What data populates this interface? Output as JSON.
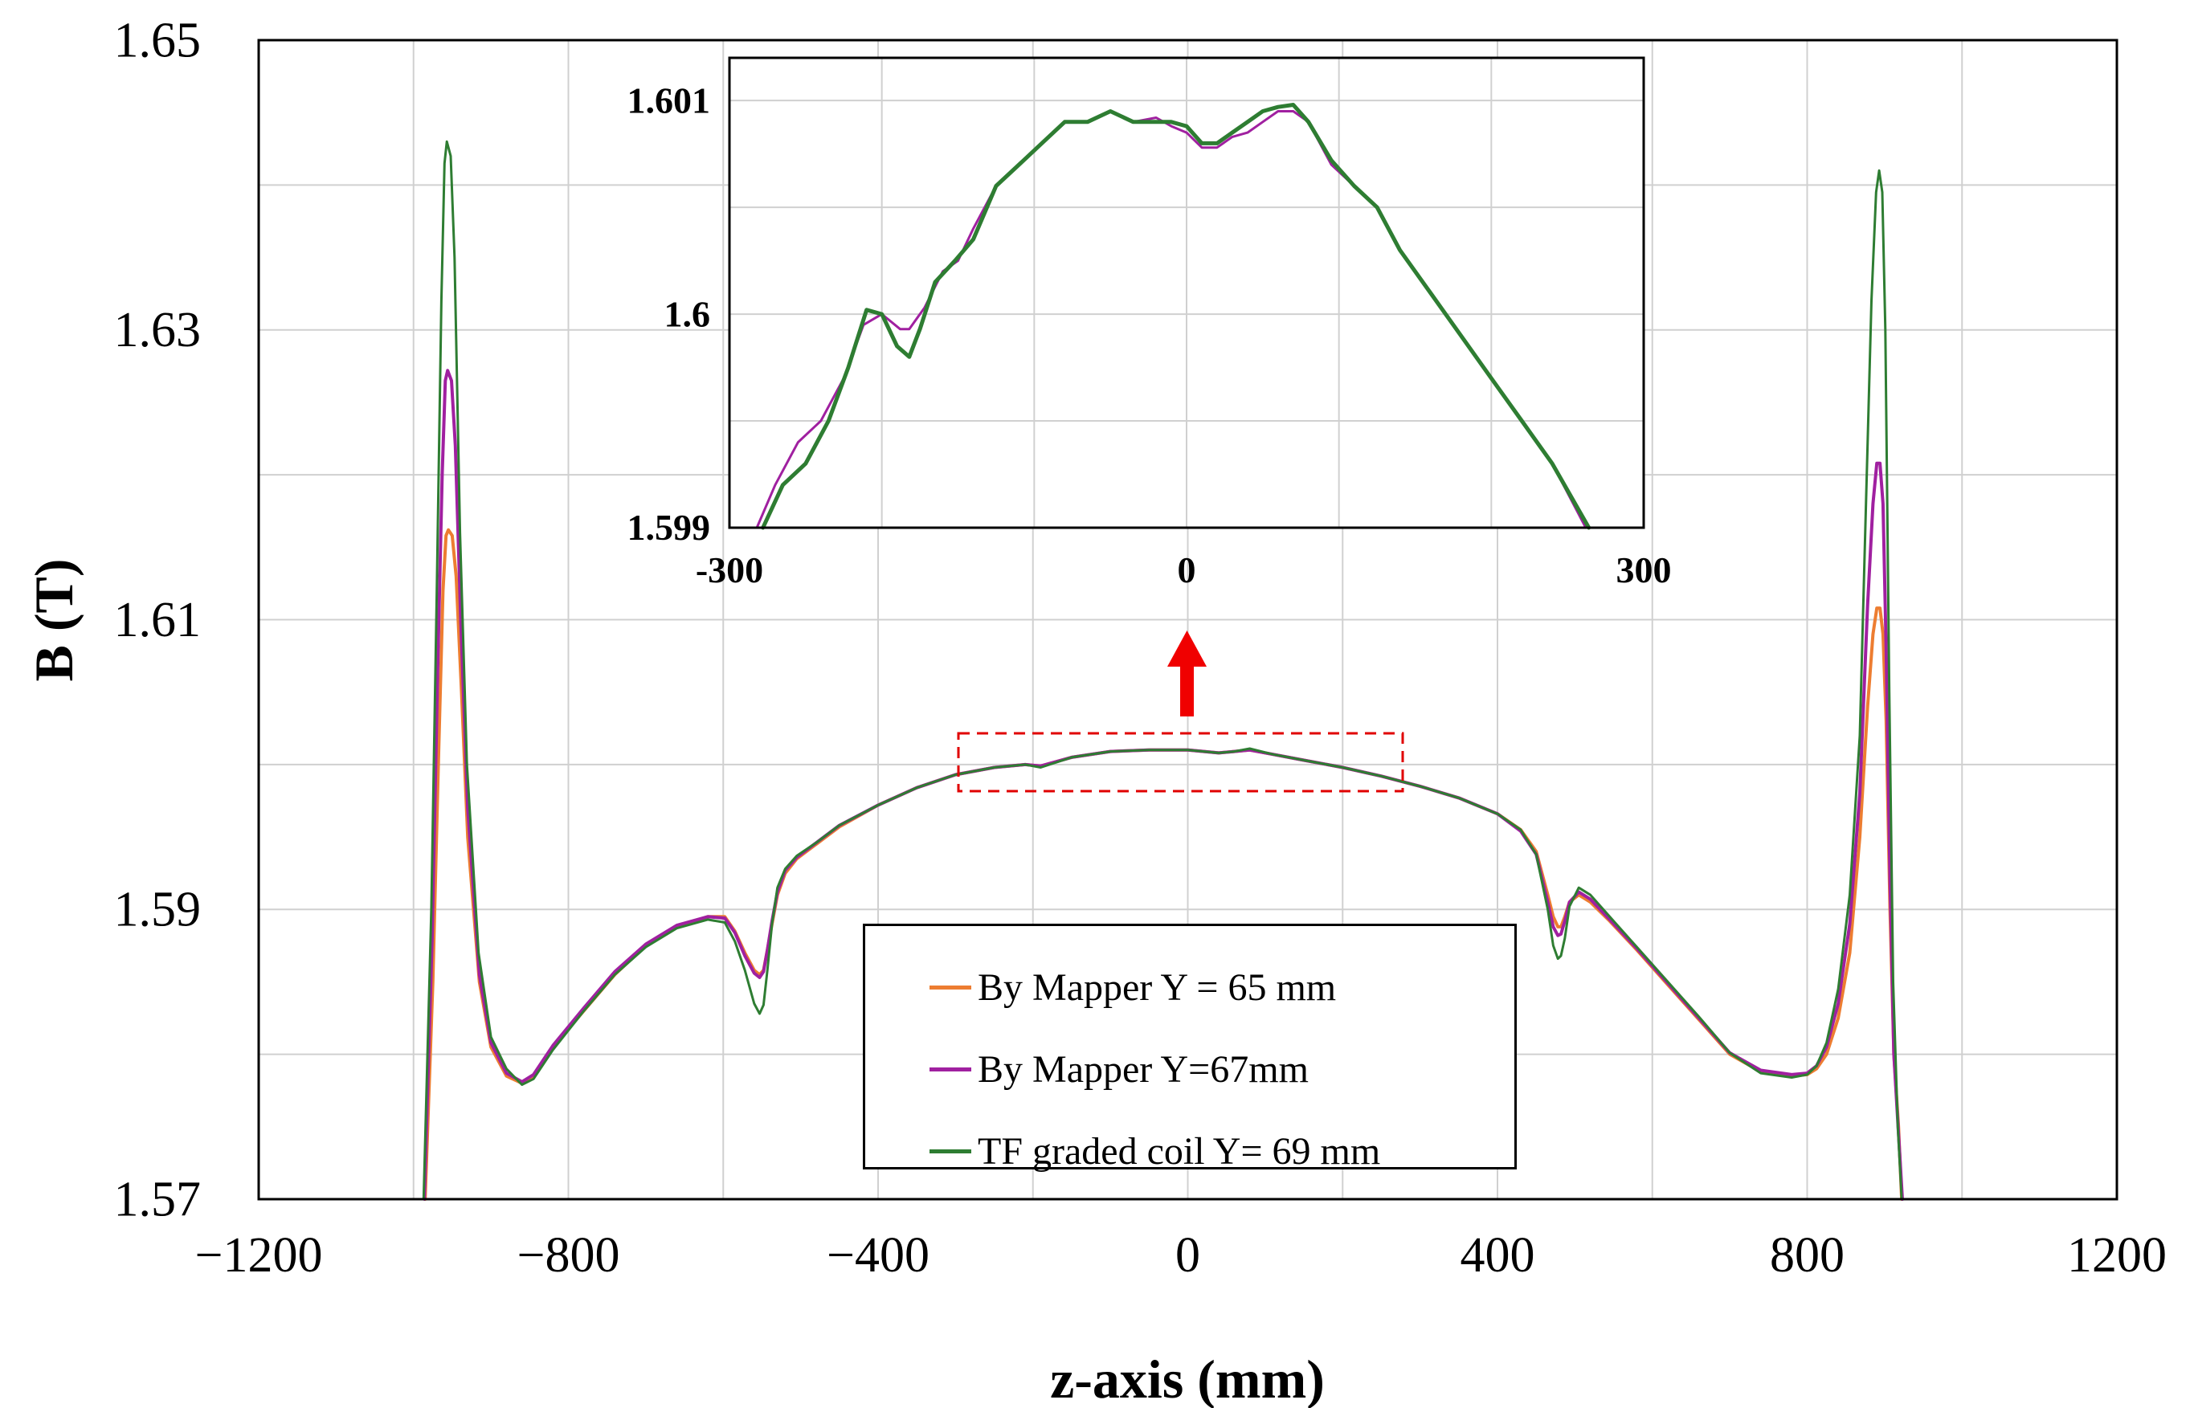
{
  "chart_data": [
    {
      "id": "main",
      "type": "line",
      "title": "",
      "xlabel": "z-axis (mm)",
      "ylabel": "B (T)",
      "xlim": [
        -1200,
        1200
      ],
      "ylim": [
        1.57,
        1.65
      ],
      "xticks": [
        -1200,
        -800,
        -400,
        0,
        400,
        800,
        1200
      ],
      "xtick_labels": [
        "−1200",
        "−800",
        "−400",
        "0",
        "400",
        "800",
        "1200"
      ],
      "yticks": [
        1.57,
        1.59,
        1.61,
        1.63,
        1.65
      ],
      "ytick_labels": [
        "1.57",
        "1.59",
        "1.61",
        "1.63",
        "1.65"
      ],
      "grid": true,
      "legend_position": "bottom-center",
      "series": [
        {
          "name": "By Mapper Y = 65 mm",
          "color": "#ED7D31",
          "x": [
            -985,
            -975,
            -968,
            -962,
            -958,
            -955,
            -950,
            -945,
            -938,
            -930,
            -915,
            -900,
            -880,
            -860,
            -845,
            -820,
            -780,
            -740,
            -700,
            -660,
            -620,
            -598,
            -585,
            -572,
            -560,
            -553,
            -548,
            -543,
            -537,
            -530,
            -520,
            -505,
            -480,
            -450,
            -400,
            -350,
            -300,
            -250,
            -210,
            -190,
            -150,
            -100,
            -50,
            0,
            40,
            60,
            80,
            110,
            150,
            200,
            250,
            300,
            350,
            400,
            430,
            450,
            465,
            472,
            478,
            482,
            487,
            493,
            505,
            520,
            545,
            580,
            620,
            660,
            700,
            740,
            780,
            800,
            812,
            825,
            840,
            855,
            868,
            878,
            885,
            890,
            894,
            898,
            902,
            907,
            912,
            918,
            922
          ],
          "y": [
            1.57,
            1.585,
            1.6,
            1.612,
            1.6158,
            1.6162,
            1.6158,
            1.613,
            1.605,
            1.595,
            1.585,
            1.5805,
            1.5785,
            1.578,
            1.5785,
            1.5805,
            1.583,
            1.5855,
            1.5875,
            1.5888,
            1.5895,
            1.5895,
            1.5885,
            1.587,
            1.5858,
            1.5855,
            1.5858,
            1.5872,
            1.589,
            1.591,
            1.5925,
            1.5935,
            1.5945,
            1.5957,
            1.5972,
            1.5984,
            1.5993,
            1.5998,
            1.6,
            1.5999,
            1.6005,
            1.6009,
            1.601,
            1.601,
            1.6008,
            1.6009,
            1.601,
            1.6007,
            1.6003,
            1.5998,
            1.5992,
            1.5985,
            1.5977,
            1.5966,
            1.5955,
            1.594,
            1.591,
            1.5895,
            1.5888,
            1.5888,
            1.5895,
            1.5905,
            1.591,
            1.5905,
            1.5892,
            1.5872,
            1.5848,
            1.5824,
            1.58,
            1.5788,
            1.5785,
            1.5786,
            1.579,
            1.58,
            1.5825,
            1.587,
            1.595,
            1.604,
            1.609,
            1.6108,
            1.6108,
            1.609,
            1.603,
            1.59,
            1.58,
            1.575,
            1.57
          ]
        },
        {
          "name": "By Mapper Y=67mm",
          "color": "#A020A0",
          "x": [
            -986,
            -976,
            -969,
            -963,
            -959,
            -956,
            -951,
            -946,
            -939,
            -930,
            -915,
            -900,
            -880,
            -860,
            -845,
            -820,
            -780,
            -740,
            -700,
            -660,
            -620,
            -598,
            -585,
            -572,
            -560,
            -553,
            -548,
            -543,
            -537,
            -530,
            -520,
            -505,
            -480,
            -450,
            -400,
            -350,
            -300,
            -250,
            -210,
            -190,
            -150,
            -100,
            -50,
            0,
            40,
            60,
            80,
            110,
            150,
            200,
            250,
            300,
            350,
            400,
            430,
            450,
            465,
            472,
            478,
            482,
            487,
            493,
            505,
            520,
            545,
            580,
            620,
            660,
            700,
            740,
            780,
            800,
            812,
            825,
            840,
            855,
            868,
            878,
            885,
            890,
            894,
            898,
            902,
            907,
            912,
            918,
            923
          ],
          "y": [
            1.57,
            1.588,
            1.606,
            1.62,
            1.6265,
            1.6272,
            1.6265,
            1.622,
            1.61,
            1.597,
            1.5855,
            1.5808,
            1.5787,
            1.5781,
            1.5786,
            1.5806,
            1.5832,
            1.5857,
            1.5876,
            1.5889,
            1.5895,
            1.5894,
            1.5884,
            1.5868,
            1.5856,
            1.5853,
            1.5857,
            1.5872,
            1.5892,
            1.5912,
            1.5927,
            1.5936,
            1.5946,
            1.5958,
            1.5972,
            1.5984,
            1.5993,
            1.5998,
            1.6,
            1.5999,
            1.6005,
            1.6009,
            1.601,
            1.601,
            1.6008,
            1.6009,
            1.601,
            1.6007,
            1.6003,
            1.5998,
            1.5992,
            1.5985,
            1.5977,
            1.5966,
            1.5954,
            1.5938,
            1.5905,
            1.5888,
            1.5882,
            1.5883,
            1.5892,
            1.5905,
            1.5912,
            1.5907,
            1.5893,
            1.5873,
            1.5849,
            1.5825,
            1.5801,
            1.5789,
            1.5786,
            1.5787,
            1.5792,
            1.5805,
            1.5835,
            1.589,
            1.598,
            1.611,
            1.618,
            1.6208,
            1.6208,
            1.618,
            1.608,
            1.592,
            1.58,
            1.5745,
            1.57
          ]
        },
        {
          "name": "TF graded coil Y= 69 mm",
          "color": "#2E7D32",
          "x": [
            -987,
            -977,
            -970,
            -964,
            -960,
            -957,
            -952,
            -947,
            -940,
            -931,
            -916,
            -900,
            -880,
            -860,
            -845,
            -820,
            -780,
            -740,
            -700,
            -660,
            -620,
            -598,
            -585,
            -572,
            -560,
            -553,
            -548,
            -543,
            -537,
            -530,
            -520,
            -505,
            -480,
            -450,
            -400,
            -350,
            -300,
            -250,
            -210,
            -190,
            -150,
            -100,
            -50,
            0,
            40,
            60,
            80,
            110,
            150,
            200,
            250,
            300,
            350,
            400,
            430,
            450,
            465,
            472,
            478,
            482,
            487,
            493,
            505,
            520,
            545,
            580,
            620,
            660,
            700,
            740,
            780,
            800,
            812,
            825,
            840,
            855,
            868,
            876,
            883,
            889,
            893,
            897,
            901,
            906,
            911,
            917,
            922
          ],
          "y": [
            1.57,
            1.59,
            1.612,
            1.632,
            1.6415,
            1.643,
            1.642,
            1.635,
            1.616,
            1.6,
            1.587,
            1.5812,
            1.579,
            1.5779,
            1.5783,
            1.5803,
            1.583,
            1.5855,
            1.5874,
            1.5887,
            1.5893,
            1.5891,
            1.5878,
            1.5858,
            1.5835,
            1.5828,
            1.5834,
            1.5858,
            1.589,
            1.5915,
            1.5928,
            1.5937,
            1.5946,
            1.5958,
            1.5972,
            1.5984,
            1.5993,
            1.5998,
            1.6,
            1.5998,
            1.6005,
            1.6009,
            1.601,
            1.601,
            1.6008,
            1.6009,
            1.6011,
            1.6007,
            1.6003,
            1.5998,
            1.5992,
            1.5985,
            1.5977,
            1.5966,
            1.5955,
            1.5938,
            1.59,
            1.5875,
            1.5866,
            1.5868,
            1.588,
            1.5902,
            1.5915,
            1.591,
            1.5895,
            1.5874,
            1.585,
            1.5826,
            1.5801,
            1.5787,
            1.5784,
            1.5786,
            1.5792,
            1.5808,
            1.5845,
            1.591,
            1.602,
            1.618,
            1.632,
            1.6395,
            1.641,
            1.6395,
            1.63,
            1.605,
            1.585,
            1.575,
            1.57
          ]
        }
      ]
    },
    {
      "id": "inset",
      "type": "line",
      "title": "",
      "xlabel": "",
      "ylabel": "",
      "xlim": [
        -300,
        300
      ],
      "ylim": [
        1.599,
        1.6012
      ],
      "xticks": [
        -300,
        0,
        300
      ],
      "xtick_labels": [
        "-300",
        "0",
        "300"
      ],
      "yticks": [
        1.599,
        1.6,
        1.601
      ],
      "ytick_labels": [
        "1.599",
        "1.6",
        "1.601"
      ],
      "grid": true,
      "series": [
        {
          "name": "By Mapper Y=67mm",
          "color": "#A020A0",
          "x": [
            -282,
            -270,
            -255,
            -240,
            -225,
            -212,
            -200,
            -188,
            -182,
            -172,
            -160,
            -150,
            -140,
            -125,
            -110,
            -95,
            -80,
            -65,
            -50,
            -35,
            -20,
            -10,
            0,
            10,
            20,
            30,
            40,
            50,
            60,
            70,
            80,
            95,
            110,
            125,
            140,
            160,
            180,
            200,
            220,
            240,
            262
          ],
          "y": [
            1.599,
            1.5992,
            1.5994,
            1.5995,
            1.5997,
            1.59995,
            1.6,
            1.59993,
            1.59993,
            1.60003,
            1.6002,
            1.60025,
            1.6004,
            1.6006,
            1.6007,
            1.6008,
            1.6009,
            1.6009,
            1.60095,
            1.6009,
            1.60092,
            1.60088,
            1.60085,
            1.60078,
            1.60078,
            1.60083,
            1.60085,
            1.6009,
            1.60095,
            1.60095,
            1.6009,
            1.6007,
            1.6006,
            1.6005,
            1.6003,
            1.6001,
            1.5999,
            1.5997,
            1.5995,
            1.5993,
            1.599
          ]
        },
        {
          "name": "TF graded coil Y= 69 mm",
          "color": "#2E7D32",
          "x": [
            -278,
            -265,
            -250,
            -235,
            -222,
            -210,
            -200,
            -190,
            -182,
            -175,
            -165,
            -152,
            -140,
            -125,
            -110,
            -95,
            -80,
            -65,
            -50,
            -35,
            -20,
            -10,
            0,
            10,
            20,
            30,
            40,
            50,
            60,
            70,
            80,
            95,
            110,
            125,
            140,
            160,
            180,
            200,
            220,
            240,
            264
          ],
          "y": [
            1.599,
            1.5992,
            1.5993,
            1.5995,
            1.59975,
            1.60002,
            1.6,
            1.59985,
            1.5998,
            1.59993,
            1.60015,
            1.60025,
            1.60035,
            1.6006,
            1.6007,
            1.6008,
            1.6009,
            1.6009,
            1.60095,
            1.6009,
            1.6009,
            1.6009,
            1.60088,
            1.6008,
            1.6008,
            1.60085,
            1.6009,
            1.60095,
            1.60097,
            1.60098,
            1.6009,
            1.60072,
            1.6006,
            1.6005,
            1.6003,
            1.6001,
            1.5999,
            1.5997,
            1.5995,
            1.5993,
            1.599
          ]
        }
      ]
    }
  ]
}
